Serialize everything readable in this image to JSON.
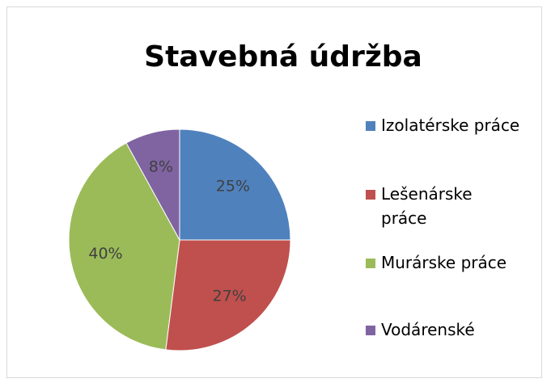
{
  "chart_data": {
    "type": "pie",
    "title": "Stavebná údržba",
    "categories": [
      "Izolatérske práce",
      "Lešenárske práce",
      "Murárske práce",
      "Vodárenské"
    ],
    "values": [
      25,
      27,
      40,
      8
    ],
    "value_labels": [
      "25%",
      "27%",
      "40%",
      "8%"
    ],
    "colors": [
      "#4f81bd",
      "#c0504d",
      "#9bbb59",
      "#8064a2"
    ],
    "legend": "right"
  }
}
